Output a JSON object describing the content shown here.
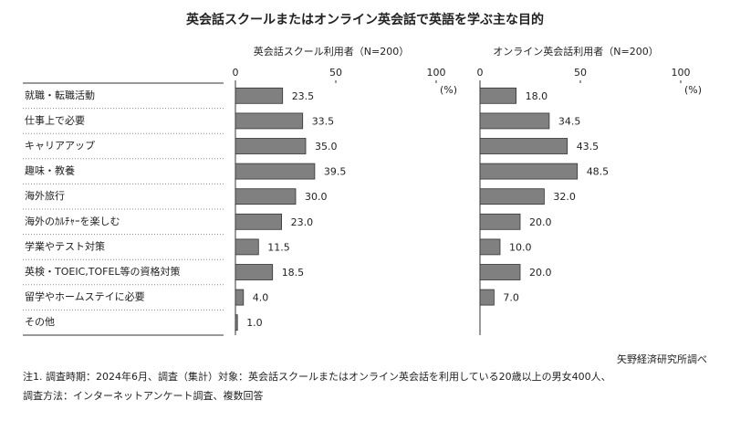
{
  "title": "英会話スクールまたはオンライン英会話で英語を学ぶ主な目的",
  "source": "矢野経済研究所調べ",
  "notes": [
    "注1. 調査時期：2024年6月、調査（集計）対象：英会話スクールまたはオンライン英会話を利用している20歳以上の男女400人、",
    "調査方法：インターネットアンケート調査、複数回答"
  ],
  "chart_data": [
    {
      "type": "bar",
      "orientation": "horizontal",
      "title": "英会話スクール利用者（N=200）",
      "unit": "(%)",
      "categories": [
        "就職・転職活動",
        "仕事上で必要",
        "キャリアアップ",
        "趣味・教養",
        "海外旅行",
        "海外のｶﾙﾁｬｰを楽しむ",
        "学業やテスト対策",
        "英検・TOEIC,TOFEL等の資格対策",
        "留学やホームステイに必要",
        "その他"
      ],
      "values": [
        23.5,
        33.5,
        35.0,
        39.5,
        30.0,
        23.0,
        11.5,
        18.5,
        4.0,
        1.0
      ],
      "value_labels": [
        "23.5",
        "33.5",
        "35.0",
        "39.5",
        "30.0",
        "23.0",
        "11.5",
        "18.5",
        "4.0",
        "1.0"
      ],
      "color": "#808080",
      "xlim": [
        0,
        100
      ],
      "xticks": [
        0,
        50,
        100
      ]
    },
    {
      "type": "bar",
      "orientation": "horizontal",
      "title": "オンライン英会話利用者（N=200）",
      "unit": "(%)",
      "values": [
        18.0,
        34.5,
        43.5,
        48.5,
        32.0,
        20.0,
        10.0,
        20.0,
        7.0,
        null
      ],
      "value_labels": [
        "18.0",
        "34.5",
        "43.5",
        "48.5",
        "32.0",
        "20.0",
        "10.0",
        "20.0",
        "7.0",
        null
      ],
      "color": "#808080",
      "xlim": [
        0,
        100
      ],
      "xticks": [
        0,
        50,
        100
      ]
    }
  ]
}
